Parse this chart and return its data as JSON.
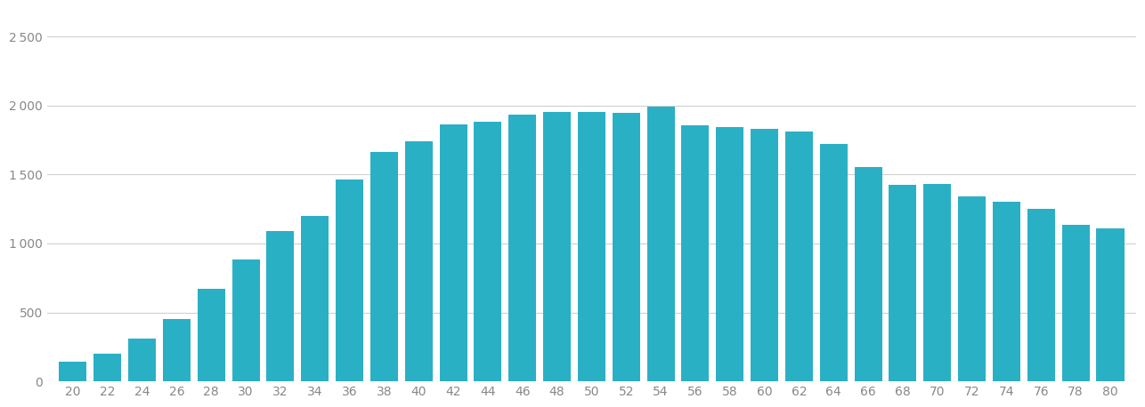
{
  "ages": [
    20,
    22,
    24,
    26,
    28,
    30,
    32,
    34,
    36,
    38,
    40,
    42,
    44,
    46,
    48,
    50,
    52,
    54,
    56,
    58,
    60,
    62,
    64,
    66,
    68,
    70,
    72,
    74,
    76,
    78,
    80
  ],
  "values": [
    140,
    200,
    310,
    450,
    670,
    880,
    1090,
    1200,
    1460,
    1660,
    1740,
    1860,
    1880,
    1930,
    1950,
    1950,
    1945,
    1990,
    1855,
    1840,
    1830,
    1810,
    1720,
    1555,
    1425,
    1430,
    1340,
    1300,
    1250,
    1135,
    1110
  ],
  "bar_color": "#2ab0c5",
  "background_color": "#ffffff",
  "grid_color": "#d0d0d0",
  "text_color": "#888888",
  "yticks": [
    0,
    500,
    1000,
    1500,
    2000,
    2500
  ],
  "ylim": [
    0,
    2700
  ],
  "bar_width": 1.6
}
